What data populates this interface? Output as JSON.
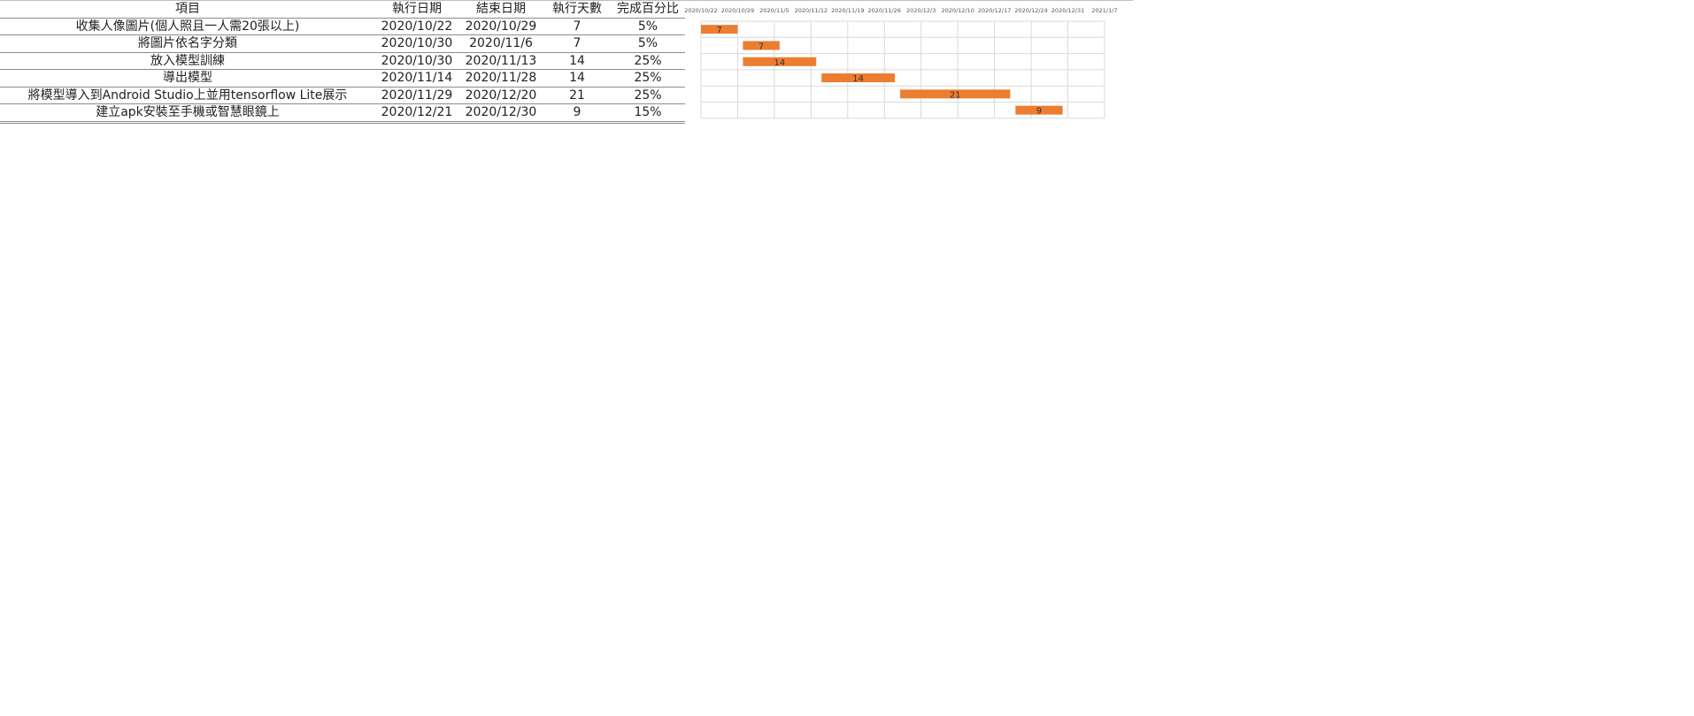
{
  "table": {
    "headers": [
      "項目",
      "執行日期",
      "結束日期",
      "執行天數",
      "完成百分比"
    ],
    "rows": [
      [
        "收集人像圖片(個人照且一人需20張以上)",
        "2020/10/22",
        "2020/10/29",
        "7",
        "5%"
      ],
      [
        "將圖片依名字分類",
        "2020/10/30",
        "2020/11/6",
        "7",
        "5%"
      ],
      [
        "放入模型訓練",
        "2020/10/30",
        "2020/11/13",
        "14",
        "25%"
      ],
      [
        "導出模型",
        "2020/11/14",
        "2020/11/28",
        "14",
        "25%"
      ],
      [
        "將模型導入到Android Studio上並用tensorflow Lite展示",
        "2020/11/29",
        "2020/12/20",
        "21",
        "25%"
      ],
      [
        "建立apk安裝至手機或智慧眼鏡上",
        "2020/12/21",
        "2020/12/30",
        "9",
        "15%"
      ]
    ]
  },
  "chart_data": {
    "type": "bar",
    "orientation": "horizontal-gantt",
    "title": "",
    "xlabel": "",
    "ylabel": "",
    "x_ticks": [
      "2020/10/22",
      "2020/10/29",
      "2020/11/5",
      "2020/11/12",
      "2020/11/19",
      "2020/11/26",
      "2020/12/3",
      "2020/12/10",
      "2020/12/17",
      "2020/12/24",
      "2020/12/31",
      "2021/1/7"
    ],
    "xlim": [
      "2020/10/22",
      "2021/1/7"
    ],
    "grid": true,
    "bar_color": "#ed7d31",
    "tasks": [
      {
        "start": "2020/10/22",
        "duration": 7,
        "label": "7"
      },
      {
        "start": "2020/10/30",
        "duration": 7,
        "label": "7"
      },
      {
        "start": "2020/10/30",
        "duration": 14,
        "label": "14"
      },
      {
        "start": "2020/11/14",
        "duration": 14,
        "label": "14"
      },
      {
        "start": "2020/11/29",
        "duration": 21,
        "label": "21"
      },
      {
        "start": "2020/12/21",
        "duration": 9,
        "label": "9"
      }
    ]
  }
}
